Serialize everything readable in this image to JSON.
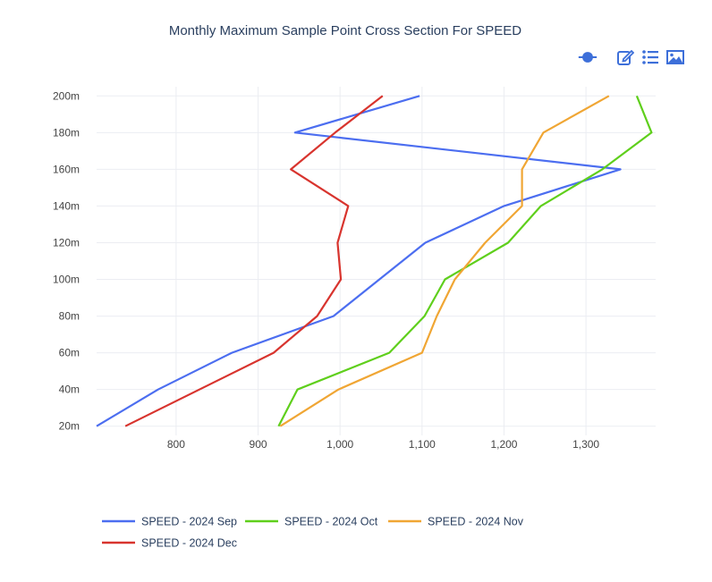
{
  "toolbar": {
    "icons": [
      "slider-dot-icon",
      "edit-icon",
      "list-icon",
      "image-icon"
    ],
    "accent_color": "#3d6fd9"
  },
  "chart_data": {
    "type": "line",
    "title": "Monthly Maximum Sample Point Cross Section For SPEED",
    "xlabel": "",
    "ylabel": "",
    "xlim": [
      703,
      1385
    ],
    "ylim": [
      15,
      205
    ],
    "x_ticks": [
      800,
      900,
      1000,
      1100,
      1200,
      1300
    ],
    "x_tick_labels": [
      "800",
      "900",
      "1,000",
      "1,100",
      "1,200",
      "1,300"
    ],
    "y_ticks": [
      20,
      40,
      60,
      80,
      100,
      120,
      140,
      160,
      180,
      200
    ],
    "y_tick_labels": [
      "20m",
      "40m",
      "60m",
      "80m",
      "100m",
      "120m",
      "140m",
      "160m",
      "180m",
      "200m"
    ],
    "grid": true,
    "legend_position": "bottom",
    "series": [
      {
        "name": "SPEED - 2024 Sep",
        "color": "#4c6ef0",
        "points": [
          [
            703,
            20
          ],
          [
            778,
            40
          ],
          [
            868,
            60
          ],
          [
            992,
            80
          ],
          [
            1048,
            100
          ],
          [
            1104,
            120
          ],
          [
            1200,
            140
          ],
          [
            1342,
            160
          ],
          [
            945,
            180
          ],
          [
            1097,
            200
          ]
        ]
      },
      {
        "name": "SPEED - 2024 Oct",
        "color": "#5fcf1c",
        "points": [
          [
            925,
            20
          ],
          [
            948,
            40
          ],
          [
            1060,
            60
          ],
          [
            1103,
            80
          ],
          [
            1128,
            100
          ],
          [
            1205,
            120
          ],
          [
            1245,
            140
          ],
          [
            1320,
            160
          ],
          [
            1380,
            180
          ],
          [
            1362,
            200
          ]
        ]
      },
      {
        "name": "SPEED - 2024 Nov",
        "color": "#f0a634",
        "points": [
          [
            927,
            20
          ],
          [
            998,
            40
          ],
          [
            1100,
            60
          ],
          [
            1118,
            80
          ],
          [
            1140,
            100
          ],
          [
            1177,
            120
          ],
          [
            1222,
            140
          ],
          [
            1222,
            160
          ],
          [
            1248,
            180
          ],
          [
            1328,
            200
          ]
        ]
      },
      {
        "name": "SPEED - 2024 Dec",
        "color": "#d8342e",
        "points": [
          [
            738,
            20
          ],
          [
            919,
            60
          ],
          [
            972,
            80
          ],
          [
            1001,
            100
          ],
          [
            997,
            120
          ],
          [
            1010,
            140
          ],
          [
            940,
            160
          ],
          [
            994,
            180
          ],
          [
            1052,
            200
          ]
        ]
      }
    ]
  }
}
